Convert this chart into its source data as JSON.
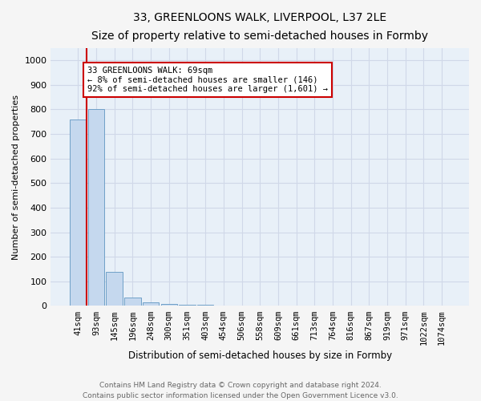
{
  "title": "33, GREENLOONS WALK, LIVERPOOL, L37 2LE",
  "subtitle": "Size of property relative to semi-detached houses in Formby",
  "xlabel": "Distribution of semi-detached houses by size in Formby",
  "ylabel": "Number of semi-detached properties",
  "bar_values": [
    760,
    800,
    140,
    35,
    15,
    8,
    5,
    4,
    3,
    2,
    2,
    2,
    2,
    1,
    1,
    1,
    1,
    1,
    1,
    1,
    1
  ],
  "bar_labels": [
    "41sqm",
    "93sqm",
    "145sqm",
    "196sqm",
    "248sqm",
    "300sqm",
    "351sqm",
    "403sqm",
    "454sqm",
    "506sqm",
    "558sqm",
    "609sqm",
    "661sqm",
    "713sqm",
    "764sqm",
    "816sqm",
    "867sqm",
    "919sqm",
    "971sqm",
    "1022sqm",
    "1074sqm"
  ],
  "bar_color": "#c5d8ee",
  "bar_edge_color": "#6fa0c8",
  "bg_color": "#e8f0f8",
  "fig_bg_color": "#f5f5f5",
  "annotation_text": "33 GREENLOONS WALK: 69sqm\n← 8% of semi-detached houses are smaller (146)\n92% of semi-detached houses are larger (1,601) →",
  "annotation_box_color": "#ffffff",
  "annotation_border_color": "#cc0000",
  "vline_color": "#cc0000",
  "ylim": [
    0,
    1050
  ],
  "yticks": [
    0,
    100,
    200,
    300,
    400,
    500,
    600,
    700,
    800,
    900,
    1000
  ],
  "grid_color": "#d0d8e8",
  "footer_line1": "Contains HM Land Registry data © Crown copyright and database right 2024.",
  "footer_line2": "Contains public sector information licensed under the Open Government Licence v3.0."
}
